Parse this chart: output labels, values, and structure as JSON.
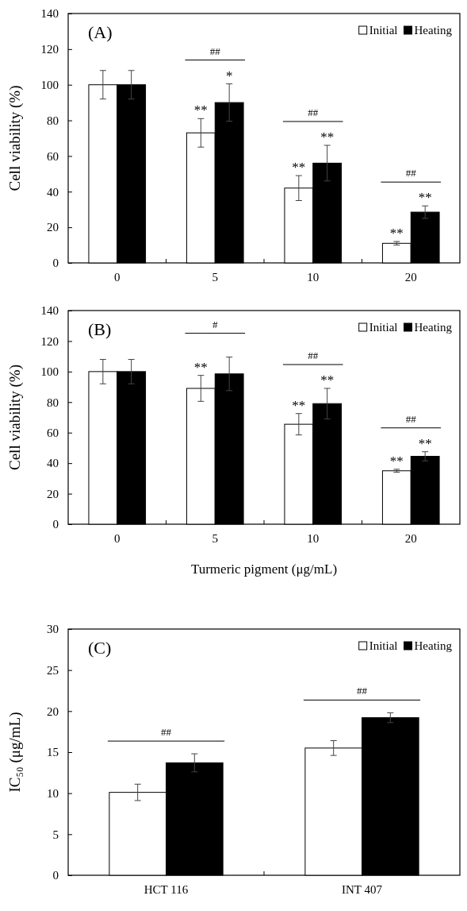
{
  "chart_data": [
    {
      "type": "bar",
      "title": "(A)",
      "ylabel": "Cell viability (%)",
      "categories": [
        "0",
        "5",
        "10",
        "20"
      ],
      "ylim": [
        0,
        140
      ],
      "yticks": [
        0,
        20,
        40,
        60,
        80,
        100,
        120,
        140
      ],
      "legend": "top right",
      "series": [
        {
          "name": "Initial",
          "color": "#ffffff",
          "values": [
            100,
            73,
            42,
            11
          ],
          "errors": [
            8,
            8,
            7,
            1
          ]
        },
        {
          "name": "Heating",
          "color": "#000000",
          "values": [
            100,
            90,
            56,
            28.5
          ],
          "errors": [
            8,
            10.5,
            10,
            3.5
          ]
        }
      ],
      "annotations": [
        "**",
        "*",
        "##",
        "**",
        "**",
        "##",
        "**",
        "**",
        "##"
      ]
    },
    {
      "type": "bar",
      "title": "(B)",
      "ylabel": "Cell viability (%)",
      "xlabel": "Turmeric pigment (μg/mL)",
      "categories": [
        "0",
        "5",
        "10",
        "20"
      ],
      "ylim": [
        0,
        140
      ],
      "yticks": [
        0,
        20,
        40,
        60,
        80,
        100,
        120,
        140
      ],
      "legend": "top right",
      "series": [
        {
          "name": "Initial",
          "color": "#ffffff",
          "values": [
            100,
            89,
            65.5,
            35
          ],
          "errors": [
            8,
            8.5,
            7,
            1
          ]
        },
        {
          "name": "Heating",
          "color": "#000000",
          "values": [
            100,
            98.5,
            79,
            44.5
          ],
          "errors": [
            8,
            11,
            10,
            3
          ]
        }
      ],
      "annotations": [
        "**",
        "#",
        "**",
        "**",
        "##",
        "**",
        "**",
        "##"
      ]
    },
    {
      "type": "bar",
      "title": "(C)",
      "ylabel": "IC₅₀ (μg/mL)",
      "categories": [
        "HCT 116",
        "INT 407"
      ],
      "ylim": [
        0,
        30
      ],
      "yticks": [
        0,
        5,
        10,
        15,
        20,
        25,
        30
      ],
      "legend": "top right",
      "series": [
        {
          "name": "Initial",
          "color": "#ffffff",
          "values": [
            10.1,
            15.5
          ],
          "errors": [
            1,
            0.9
          ]
        },
        {
          "name": "Heating",
          "color": "#000000",
          "values": [
            13.7,
            19.2
          ],
          "errors": [
            1.1,
            0.6
          ]
        }
      ],
      "annotations": [
        "##",
        "##"
      ]
    }
  ]
}
